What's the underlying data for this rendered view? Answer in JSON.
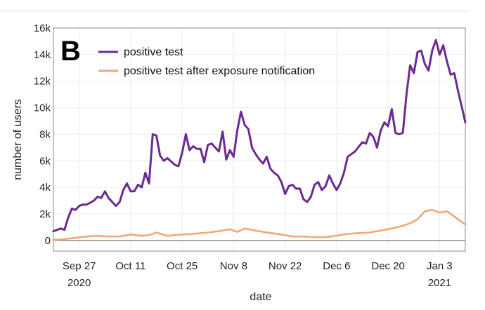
{
  "chart_data": {
    "type": "line",
    "panel_label": "B",
    "xlabel": "date",
    "ylabel": "number of users",
    "ylim": [
      -800,
      16000
    ],
    "yticks": [
      0,
      2000,
      4000,
      6000,
      8000,
      10000,
      12000,
      14000,
      16000
    ],
    "ytick_labels": [
      "0",
      "2k",
      "4k",
      "6k",
      "8k",
      "10k",
      "12k",
      "14k",
      "16k"
    ],
    "xlim": [
      0,
      112
    ],
    "xticks": [
      {
        "day": 7,
        "label": "Sep 27",
        "sub": "2020"
      },
      {
        "day": 21,
        "label": "Oct 11",
        "sub": ""
      },
      {
        "day": 35,
        "label": "Oct 25",
        "sub": ""
      },
      {
        "day": 49,
        "label": "Nov 8",
        "sub": ""
      },
      {
        "day": 63,
        "label": "Nov 22",
        "sub": ""
      },
      {
        "day": 77,
        "label": "Dec 6",
        "sub": ""
      },
      {
        "day": 91,
        "label": "Dec 20",
        "sub": ""
      },
      {
        "day": 105,
        "label": "Jan 3",
        "sub": "2021"
      }
    ],
    "grid": true,
    "legend_position": "top-left",
    "series": [
      {
        "name": "positive test",
        "color": "#6a2c8e",
        "x": [
          0,
          2,
          3,
          4,
          5,
          6,
          7,
          8,
          9,
          11,
          12,
          13,
          14,
          15,
          17,
          18,
          19,
          20,
          21,
          22,
          23,
          24,
          25,
          26,
          27,
          28,
          29,
          30,
          31,
          33,
          34,
          35,
          36,
          37,
          38,
          39,
          40,
          41,
          42,
          43,
          45,
          46,
          47,
          48,
          49,
          50,
          51,
          52,
          53,
          54,
          55,
          56,
          57,
          58,
          59,
          60,
          61,
          62,
          63,
          64,
          65,
          66,
          67,
          68,
          69,
          70,
          71,
          72,
          73,
          74,
          75,
          76,
          77,
          78,
          79,
          80,
          81,
          82,
          84,
          85,
          86,
          87,
          88,
          89,
          90,
          91,
          92,
          93,
          94,
          95,
          96,
          97,
          98,
          99,
          100,
          101,
          102,
          103,
          104,
          105,
          106,
          107,
          108,
          109,
          110,
          111,
          112
        ],
        "values": [
          700,
          900,
          800,
          1700,
          2400,
          2300,
          2600,
          2700,
          2700,
          3000,
          3300,
          3200,
          3700,
          3200,
          2600,
          2900,
          3800,
          4300,
          3700,
          3700,
          4200,
          4000,
          5100,
          4300,
          8000,
          7900,
          6400,
          6000,
          6200,
          5700,
          5600,
          6600,
          8000,
          6800,
          7100,
          6900,
          6900,
          5900,
          7200,
          7300,
          6700,
          8200,
          6100,
          6800,
          6300,
          8300,
          9700,
          8700,
          8400,
          7000,
          6500,
          6100,
          5800,
          6300,
          5400,
          5100,
          4900,
          4400,
          3500,
          4100,
          4200,
          3900,
          3900,
          3100,
          2900,
          3300,
          4200,
          4400,
          3800,
          4100,
          4900,
          4300,
          3800,
          4300,
          5100,
          6300,
          6500,
          6700,
          7400,
          7300,
          8100,
          7800,
          7000,
          8300,
          8900,
          8600,
          9900,
          8100,
          8000,
          8100,
          11000,
          13200,
          12600,
          14200,
          14300,
          13300,
          12800,
          14300,
          15100,
          14000,
          14700,
          13500,
          12500,
          12600,
          11300,
          10100,
          8900
        ]
      },
      {
        "name": "positive test after exposure notification",
        "color": "#f0a878",
        "x": [
          0,
          3,
          6,
          9,
          12,
          15,
          18,
          21,
          24,
          26,
          28,
          31,
          35,
          38,
          42,
          45,
          48,
          50,
          52,
          55,
          58,
          62,
          65,
          68,
          71,
          74,
          77,
          80,
          83,
          86,
          89,
          92,
          95,
          97,
          99,
          101,
          103,
          105,
          107,
          109,
          112
        ],
        "values": [
          50,
          100,
          200,
          300,
          350,
          300,
          300,
          450,
          350,
          400,
          600,
          350,
          450,
          500,
          600,
          700,
          850,
          650,
          900,
          750,
          600,
          450,
          300,
          300,
          250,
          250,
          350,
          500,
          550,
          600,
          750,
          900,
          1100,
          1300,
          1600,
          2200,
          2300,
          2100,
          2200,
          1800,
          1200
        ]
      }
    ]
  }
}
